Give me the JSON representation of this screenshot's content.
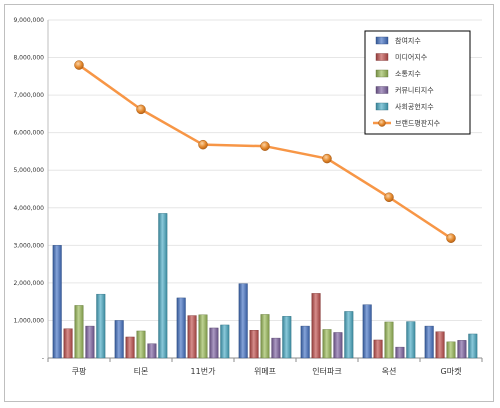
{
  "chart_data": {
    "type": "bar",
    "categories": [
      "쿠팡",
      "티몬",
      "11번가",
      "위메프",
      "인터파크",
      "옥션",
      "G마켓"
    ],
    "ylim": [
      0,
      9000000
    ],
    "yticks": [
      "-",
      "1,000,000",
      "2,000,000",
      "3,000,000",
      "4,000,000",
      "5,000,000",
      "6,000,000",
      "7,000,000",
      "8,000,000",
      "9,000,000"
    ],
    "grid": true,
    "legend_position": "top-right",
    "series": [
      {
        "name": "참여지수",
        "kind": "bar",
        "color": "#4472c4",
        "values": [
          3000000,
          1000000,
          1600000,
          1980000,
          850000,
          1420000,
          850000
        ]
      },
      {
        "name": "미디어지수",
        "kind": "bar",
        "color": "#c0504d",
        "values": [
          780000,
          560000,
          1130000,
          740000,
          1720000,
          480000,
          700000
        ]
      },
      {
        "name": "소통지수",
        "kind": "bar",
        "color": "#9bbb59",
        "values": [
          1400000,
          720000,
          1150000,
          1160000,
          760000,
          960000,
          430000
        ]
      },
      {
        "name": "커뮤니티지수",
        "kind": "bar",
        "color": "#8064a2",
        "values": [
          850000,
          380000,
          800000,
          530000,
          680000,
          290000,
          470000
        ]
      },
      {
        "name": "사회공헌지수",
        "kind": "bar",
        "color": "#4bacc6",
        "values": [
          1700000,
          3850000,
          880000,
          1110000,
          1240000,
          970000,
          640000
        ]
      },
      {
        "name": "브랜드평판지수",
        "kind": "line",
        "color": "#f79646",
        "values": [
          7800000,
          6620000,
          5680000,
          5640000,
          5310000,
          4280000,
          3190000
        ]
      }
    ]
  }
}
